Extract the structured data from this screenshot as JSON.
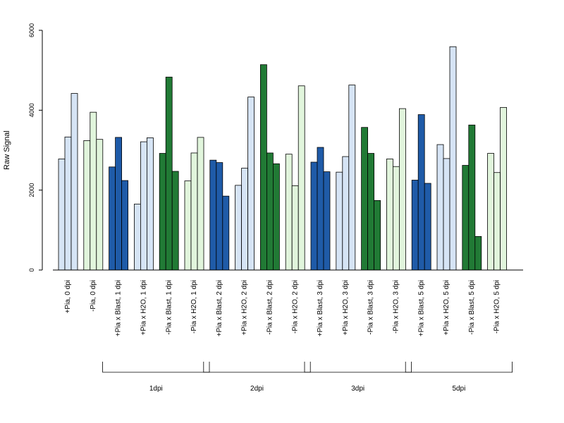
{
  "chart_data": {
    "type": "bar",
    "title": "",
    "ylabel": "Raw Signal",
    "xlabel": "",
    "ylim": [
      0,
      6000
    ],
    "yticks": [
      0,
      2000,
      4000,
      6000
    ],
    "grid": false,
    "colors": {
      "light_blue": "#d6e4f5",
      "blue": "#1f5ba8",
      "light_green": "#e1f5dc",
      "green": "#217a35",
      "stroke": "#000000"
    },
    "categories": [
      {
        "label": "+Pia, 0 dpi",
        "color": "light_blue",
        "values": [
          2780,
          3330,
          4420
        ]
      },
      {
        "label": "-Pia, 0 dpi",
        "color": "light_green",
        "values": [
          3240,
          3950,
          3270
        ]
      },
      {
        "label": "+Pia x Blast, 1 dpi",
        "color": "blue",
        "values": [
          2580,
          3320,
          2240
        ]
      },
      {
        "label": "+Pia x H2O, 1 dpi",
        "color": "light_blue",
        "values": [
          1650,
          3210,
          3310
        ]
      },
      {
        "label": "-Pia x Blast, 1 dpi",
        "color": "green",
        "values": [
          2920,
          4830,
          2470
        ]
      },
      {
        "label": "-Pia x H2O, 1 dpi",
        "color": "light_green",
        "values": [
          2230,
          2930,
          3320
        ]
      },
      {
        "label": "+Pia x Blast, 2 dpi",
        "color": "blue",
        "values": [
          2750,
          2690,
          1850
        ]
      },
      {
        "label": "+Pia x H2O, 2 dpi",
        "color": "light_blue",
        "values": [
          2120,
          2550,
          4330
        ]
      },
      {
        "label": "-Pia x Blast, 2 dpi",
        "color": "green",
        "values": [
          5140,
          2930,
          2660
        ]
      },
      {
        "label": "-Pia x H2O, 2 dpi",
        "color": "light_green",
        "values": [
          2900,
          2110,
          4610
        ]
      },
      {
        "label": "+Pia x Blast, 3 dpi",
        "color": "blue",
        "values": [
          2700,
          3070,
          2460
        ]
      },
      {
        "label": "+Pia x H2O, 3 dpi",
        "color": "light_blue",
        "values": [
          2450,
          2840,
          4630
        ]
      },
      {
        "label": "-Pia x Blast, 3 dpi",
        "color": "green",
        "values": [
          3570,
          2920,
          1740
        ]
      },
      {
        "label": "-Pia x H2O, 3 dpi",
        "color": "light_green",
        "values": [
          2780,
          2590,
          4040
        ]
      },
      {
        "label": "+Pia x Blast, 5 dpi",
        "color": "blue",
        "values": [
          2250,
          3890,
          2170
        ]
      },
      {
        "label": "+Pia x H2O, 5 dpi",
        "color": "light_blue",
        "values": [
          3140,
          2790,
          5590
        ]
      },
      {
        "label": "-Pia x Blast, 5 dpi",
        "color": "green",
        "values": [
          2620,
          3630,
          840
        ]
      },
      {
        "label": "-Pia x H2O, 5 dpi",
        "color": "light_green",
        "values": [
          2920,
          2440,
          4070
        ]
      }
    ],
    "groups": [
      {
        "label": "1dpi",
        "categories": [
          2,
          5
        ]
      },
      {
        "label": "2dpi",
        "categories": [
          6,
          9
        ]
      },
      {
        "label": "3dpi",
        "categories": [
          10,
          13
        ]
      },
      {
        "label": "5dpi",
        "categories": [
          14,
          17
        ]
      }
    ]
  }
}
